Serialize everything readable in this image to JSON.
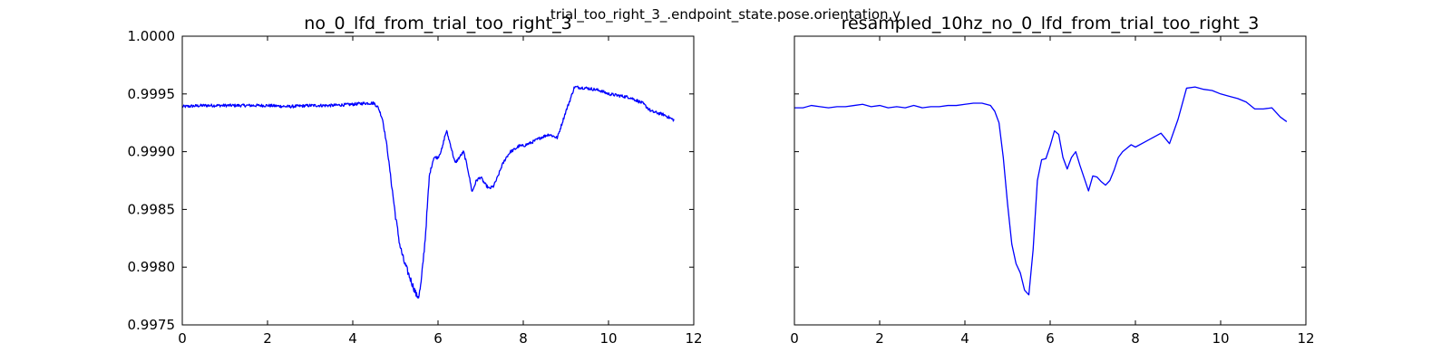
{
  "figure": {
    "suptitle": "trial_too_right_3_.endpoint_state.pose.orientation.y"
  },
  "chart_data": [
    {
      "type": "line",
      "title": "no_0_lfd_from_trial_too_right_3",
      "xlabel": "",
      "ylabel": "",
      "xlim": [
        0,
        12
      ],
      "ylim": [
        0.9975,
        1.0
      ],
      "grid": false,
      "xticks": [
        0,
        2,
        4,
        6,
        8,
        10,
        12
      ],
      "yticks": [
        0.9975,
        0.998,
        0.9985,
        0.999,
        0.9995,
        1.0
      ],
      "ytick_labels": [
        "0.9975",
        "0.9980",
        "0.9985",
        "0.9990",
        "0.9995",
        "1.0000"
      ],
      "line_color": "#0000ff",
      "noisy": true,
      "series": [
        {
          "x": [
            0,
            0.5,
            1.0,
            1.5,
            2.0,
            2.5,
            3.0,
            3.5,
            4.0,
            4.3,
            4.5,
            4.6,
            4.7,
            4.8,
            4.9,
            5.0,
            5.1,
            5.2,
            5.3,
            5.4,
            5.5,
            5.55,
            5.6,
            5.7,
            5.8,
            5.9,
            6.0,
            6.1,
            6.15,
            6.2,
            6.3,
            6.4,
            6.5,
            6.6,
            6.7,
            6.8,
            6.9,
            7.0,
            7.1,
            7.2,
            7.3,
            7.4,
            7.5,
            7.6,
            7.7,
            7.8,
            7.9,
            8.0,
            8.2,
            8.4,
            8.6,
            8.8,
            9.0,
            9.1,
            9.2,
            9.5,
            9.8,
            10.0,
            10.5,
            10.8,
            11.0,
            11.3,
            11.55
          ],
          "y": [
            0.99939,
            0.9994,
            0.9994,
            0.9994,
            0.9994,
            0.99939,
            0.9994,
            0.9994,
            0.99941,
            0.99942,
            0.99942,
            0.99938,
            0.99928,
            0.99905,
            0.99875,
            0.99845,
            0.9982,
            0.99805,
            0.99795,
            0.99785,
            0.99775,
            0.99775,
            0.99785,
            0.99825,
            0.9988,
            0.99895,
            0.99895,
            0.99903,
            0.99912,
            0.99918,
            0.99905,
            0.9989,
            0.99895,
            0.999,
            0.99885,
            0.99865,
            0.99875,
            0.99878,
            0.99872,
            0.99868,
            0.9987,
            0.99878,
            0.99888,
            0.99895,
            0.999,
            0.99902,
            0.99905,
            0.99905,
            0.99908,
            0.99912,
            0.99915,
            0.99912,
            0.99935,
            0.99945,
            0.99956,
            0.99955,
            0.99953,
            0.9995,
            0.99947,
            0.99942,
            0.99935,
            0.99932,
            0.99927
          ]
        }
      ]
    },
    {
      "type": "line",
      "title": "resampled_10hz_no_0_lfd_from_trial_too_right_3",
      "xlabel": "",
      "ylabel": "",
      "xlim": [
        0,
        12
      ],
      "ylim": [
        0.9975,
        1.0
      ],
      "grid": false,
      "xticks": [
        0,
        2,
        4,
        6,
        8,
        10,
        12
      ],
      "yticks": [
        0.9975,
        0.998,
        0.9985,
        0.999,
        0.9995,
        1.0
      ],
      "line_color": "#0000ff",
      "noisy": false,
      "series": [
        {
          "x": [
            0,
            0.2,
            0.4,
            0.6,
            0.8,
            1.0,
            1.2,
            1.4,
            1.6,
            1.8,
            2.0,
            2.2,
            2.4,
            2.6,
            2.8,
            3.0,
            3.2,
            3.4,
            3.6,
            3.8,
            4.0,
            4.2,
            4.4,
            4.6,
            4.7,
            4.8,
            4.9,
            5.0,
            5.1,
            5.2,
            5.3,
            5.4,
            5.5,
            5.6,
            5.7,
            5.8,
            5.9,
            6.0,
            6.1,
            6.2,
            6.3,
            6.4,
            6.5,
            6.6,
            6.7,
            6.8,
            6.9,
            7.0,
            7.1,
            7.2,
            7.3,
            7.4,
            7.5,
            7.6,
            7.7,
            7.8,
            7.9,
            8.0,
            8.2,
            8.4,
            8.6,
            8.8,
            9.0,
            9.2,
            9.4,
            9.6,
            9.8,
            10.0,
            10.2,
            10.4,
            10.6,
            10.8,
            11.0,
            11.2,
            11.4,
            11.55
          ],
          "y": [
            0.99938,
            0.99938,
            0.9994,
            0.99939,
            0.99938,
            0.99939,
            0.99939,
            0.9994,
            0.99941,
            0.99939,
            0.9994,
            0.99938,
            0.99939,
            0.99938,
            0.9994,
            0.99938,
            0.99939,
            0.99939,
            0.9994,
            0.9994,
            0.99941,
            0.99942,
            0.99942,
            0.9994,
            0.99935,
            0.99925,
            0.99895,
            0.99855,
            0.9982,
            0.99803,
            0.99795,
            0.9978,
            0.99776,
            0.99815,
            0.99875,
            0.99893,
            0.99894,
            0.99905,
            0.99918,
            0.99915,
            0.99895,
            0.99885,
            0.99895,
            0.999,
            0.99888,
            0.99877,
            0.99866,
            0.99879,
            0.99878,
            0.99874,
            0.99871,
            0.99875,
            0.99884,
            0.99895,
            0.999,
            0.99903,
            0.99906,
            0.99904,
            0.99908,
            0.99912,
            0.99916,
            0.99907,
            0.99928,
            0.99955,
            0.99956,
            0.99954,
            0.99953,
            0.9995,
            0.99948,
            0.99946,
            0.99943,
            0.99937,
            0.99937,
            0.99938,
            0.9993,
            0.99926
          ]
        }
      ]
    }
  ]
}
